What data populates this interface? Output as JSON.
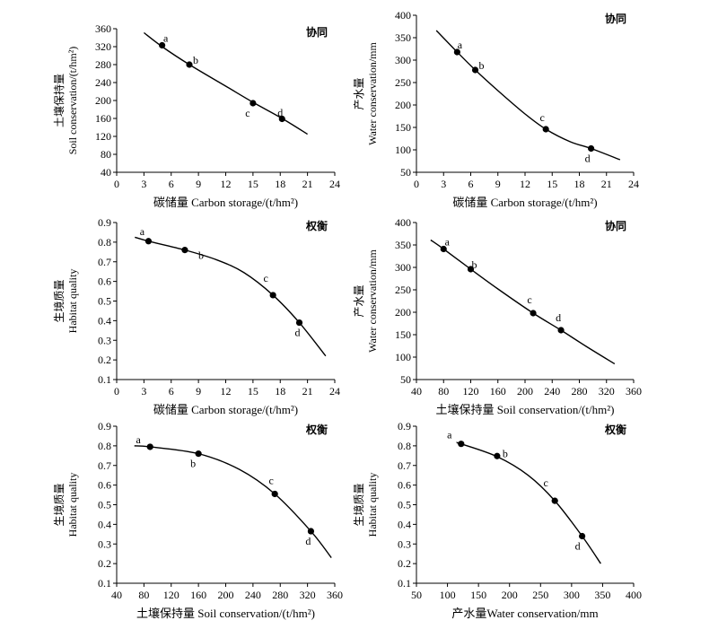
{
  "chart_data": [
    {
      "type": "line",
      "tag": "协同",
      "xlabel": "碳储量 Carbon storage/(t/hm²)",
      "ylabel_cn": "土壤保持量",
      "ylabel_en": "Soil conservation/(t/hm²)",
      "xlim": [
        0,
        24
      ],
      "ylim": [
        40,
        360
      ],
      "xticks": [
        0,
        3,
        6,
        9,
        12,
        15,
        18,
        21,
        24
      ],
      "yticks": [
        40,
        80,
        120,
        160,
        200,
        240,
        280,
        320,
        360
      ],
      "curve": {
        "x": [
          3,
          5,
          8,
          12,
          15,
          18.2,
          21
        ],
        "y": [
          351,
          320,
          280,
          232,
          196,
          160,
          125
        ]
      },
      "points": [
        {
          "label": "a",
          "x": 5,
          "y": 323
        },
        {
          "label": "b",
          "x": 8,
          "y": 280
        },
        {
          "label": "c",
          "x": 15,
          "y": 194
        },
        {
          "label": "d",
          "x": 18.2,
          "y": 159
        }
      ]
    },
    {
      "type": "line",
      "tag": "协同",
      "xlabel": "碳储量 Carbon storage/(t/hm²)",
      "ylabel_cn": "产水量",
      "ylabel_en": "Water conservation/mm",
      "xlim": [
        0,
        24
      ],
      "ylim": [
        50,
        400
      ],
      "xticks": [
        0,
        3,
        6,
        9,
        12,
        15,
        18,
        21,
        24
      ],
      "yticks": [
        50,
        100,
        150,
        200,
        250,
        300,
        350,
        400
      ],
      "curve": {
        "x": [
          2.2,
          4.5,
          6.5,
          9,
          12,
          14.3,
          17,
          19.3,
          22.5
        ],
        "y": [
          366,
          318,
          278,
          232,
          180,
          146,
          118,
          103,
          78
        ]
      },
      "points": [
        {
          "label": "a",
          "x": 4.5,
          "y": 318
        },
        {
          "label": "b",
          "x": 6.5,
          "y": 278
        },
        {
          "label": "c",
          "x": 14.3,
          "y": 146
        },
        {
          "label": "d",
          "x": 19.3,
          "y": 103
        }
      ]
    },
    {
      "type": "line",
      "tag": "权衡",
      "xlabel": "碳储量 Carbon storage/(t/hm²)",
      "ylabel_cn": "生境质量",
      "ylabel_en": "Habitat quality",
      "xlim": [
        0,
        24
      ],
      "ylim": [
        0.1,
        0.9
      ],
      "xticks": [
        0,
        3,
        6,
        9,
        12,
        15,
        18,
        21,
        24
      ],
      "yticks": [
        0.1,
        0.2,
        0.3,
        0.4,
        0.5,
        0.6,
        0.7,
        0.8,
        0.9
      ],
      "curve": {
        "x": [
          2,
          3.5,
          7.5,
          11,
          14,
          17.2,
          20.1,
          23
        ],
        "y": [
          0.825,
          0.805,
          0.76,
          0.71,
          0.645,
          0.53,
          0.39,
          0.22
        ]
      },
      "points": [
        {
          "label": "a",
          "x": 3.5,
          "y": 0.805
        },
        {
          "label": "b",
          "x": 7.5,
          "y": 0.76
        },
        {
          "label": "c",
          "x": 17.2,
          "y": 0.53
        },
        {
          "label": "d",
          "x": 20.1,
          "y": 0.39
        }
      ]
    },
    {
      "type": "line",
      "tag": "协同",
      "xlabel": "土壤保持量 Soil conservation/(t/hm²)",
      "ylabel_cn": "产水量",
      "ylabel_en": "Water conservation/mm",
      "xlim": [
        40,
        360
      ],
      "ylim": [
        50,
        400
      ],
      "xticks": [
        40,
        80,
        120,
        160,
        200,
        240,
        280,
        320,
        360
      ],
      "yticks": [
        50,
        100,
        150,
        200,
        250,
        300,
        350,
        400
      ],
      "curve": {
        "x": [
          61,
          80,
          120,
          160,
          212,
          253,
          290,
          332
        ],
        "y": [
          361,
          341,
          296,
          252,
          198,
          160,
          124,
          85
        ]
      },
      "points": [
        {
          "label": "a",
          "x": 80,
          "y": 341
        },
        {
          "label": "b",
          "x": 120,
          "y": 296
        },
        {
          "label": "c",
          "x": 212,
          "y": 198
        },
        {
          "label": "d",
          "x": 253,
          "y": 160
        }
      ]
    },
    {
      "type": "line",
      "tag": "权衡",
      "xlabel": "土壤保持量 Soil conservation/(t/hm²)",
      "ylabel_cn": "生境质量",
      "ylabel_en": "Habitat quality",
      "xlim": [
        40,
        360
      ],
      "ylim": [
        0.1,
        0.9
      ],
      "xticks": [
        40,
        80,
        120,
        160,
        200,
        240,
        280,
        320,
        360
      ],
      "yticks": [
        0.1,
        0.2,
        0.3,
        0.4,
        0.5,
        0.6,
        0.7,
        0.8,
        0.9
      ],
      "curve": {
        "x": [
          66,
          89,
          160,
          220,
          272,
          325,
          355
        ],
        "y": [
          0.8,
          0.795,
          0.76,
          0.68,
          0.555,
          0.365,
          0.23
        ]
      },
      "points": [
        {
          "label": "a",
          "x": 89,
          "y": 0.795
        },
        {
          "label": "b",
          "x": 160,
          "y": 0.76
        },
        {
          "label": "c",
          "x": 272,
          "y": 0.555
        },
        {
          "label": "d",
          "x": 325,
          "y": 0.365
        }
      ]
    },
    {
      "type": "line",
      "tag": "权衡",
      "xlabel": "产水量Water conservation/mm",
      "ylabel_cn": "生境质量",
      "ylabel_en": "Habitat quality",
      "xlim": [
        50,
        400
      ],
      "ylim": [
        0.1,
        0.9
      ],
      "xticks": [
        50,
        100,
        150,
        200,
        250,
        300,
        350,
        400
      ],
      "yticks": [
        0.1,
        0.2,
        0.3,
        0.4,
        0.5,
        0.6,
        0.7,
        0.8,
        0.9
      ],
      "curve": {
        "x": [
          115,
          122,
          180,
          230,
          273,
          317,
          347
        ],
        "y": [
          0.815,
          0.81,
          0.745,
          0.65,
          0.52,
          0.34,
          0.2
        ]
      },
      "points": [
        {
          "label": "a",
          "x": 122,
          "y": 0.81
        },
        {
          "label": "b",
          "x": 180,
          "y": 0.748
        },
        {
          "label": "c",
          "x": 273,
          "y": 0.52
        },
        {
          "label": "d",
          "x": 317,
          "y": 0.34
        }
      ]
    }
  ]
}
